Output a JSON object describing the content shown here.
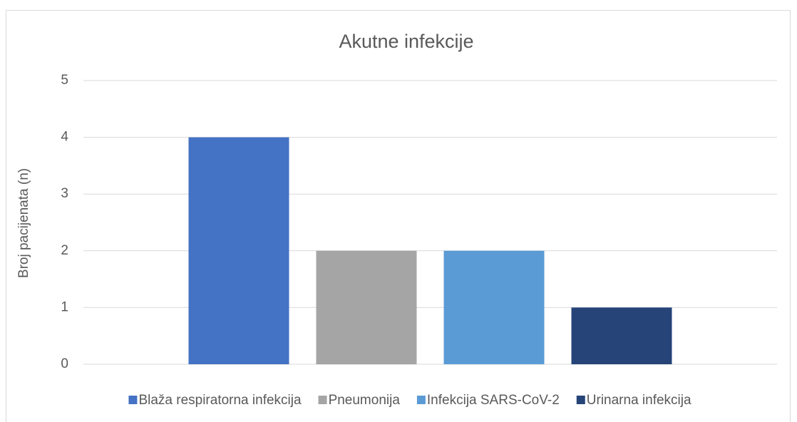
{
  "chart_data": {
    "type": "bar",
    "title": "Akutne infekcije",
    "ylabel": "Broj pacijenata (n)",
    "categories": [
      null
    ],
    "series": [
      {
        "name": "Blaža respiratorna infekcija",
        "color": "#4472c4",
        "values": [
          4
        ]
      },
      {
        "name": "Pneumonija",
        "color": "#a5a5a5",
        "values": [
          2
        ]
      },
      {
        "name": "Infekcija SARS-CoV-2",
        "color": "#5b9bd5",
        "values": [
          2
        ]
      },
      {
        "name": "Urinarna infekcija",
        "color": "#264478",
        "values": [
          1
        ]
      }
    ],
    "ylim": [
      0,
      5
    ],
    "yticks": [
      0,
      1,
      2,
      3,
      4,
      5
    ],
    "grid": true,
    "legend": "bottom"
  }
}
